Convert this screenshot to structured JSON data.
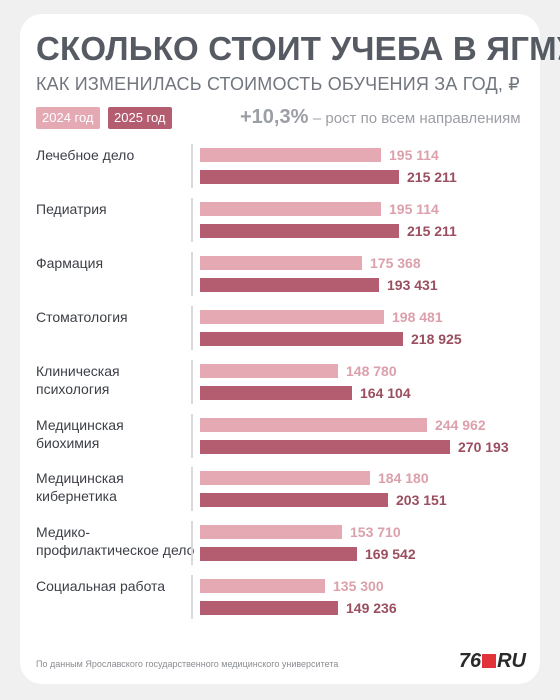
{
  "header": {
    "title": "СКОЛЬКО СТОИТ УЧЕБА В ЯГМУ",
    "subtitle": "КАК ИЗМЕНИЛАСЬ СТОИМОСТЬ ОБУЧЕНИЯ ЗА ГОД, ₽"
  },
  "legend": {
    "y2024": "2024 год",
    "y2025": "2025 год"
  },
  "growth": {
    "percent": "+10,3%",
    "text": "– рост по всем направлениям"
  },
  "colors": {
    "y2024": "#e5a9b4",
    "y2025": "#b45d70",
    "val2024": "#dba0ab",
    "val2025": "#9a4e60"
  },
  "chart_data": {
    "type": "bar",
    "title": "СКОЛЬКО СТОИТ УЧЕБА В ЯГМУ",
    "subtitle": "КАК ИЗМЕНИЛАСЬ СТОИМОСТЬ ОБУЧЕНИЯ ЗА ГОД, ₽",
    "orientation": "horizontal",
    "categories": [
      "Лечебное дело",
      "Педиатрия",
      "Фармация",
      "Стоматология",
      "Клиническая\nпсихология",
      "Медицинская\nбиохимия",
      "Медицинская\nкибернетика",
      "Медико-\nпрофилактическое дело",
      "Социальная работа"
    ],
    "series": [
      {
        "name": "2024 год",
        "values": [
          195114,
          195114,
          175368,
          198481,
          148780,
          244962,
          184180,
          153710,
          135300
        ],
        "labels": [
          "195 114",
          "195 114",
          "175 368",
          "198 481",
          "148 780",
          "244 962",
          "184 180",
          "153 710",
          "135 300"
        ]
      },
      {
        "name": "2025 год",
        "values": [
          215211,
          215211,
          193431,
          218925,
          164104,
          270193,
          203151,
          169542,
          149236
        ],
        "labels": [
          "215 211",
          "215 211",
          "193 431",
          "218 925",
          "164 104",
          "270 193",
          "203 151",
          "169 542",
          "149 236"
        ]
      }
    ],
    "xlim": [
      0,
      270193
    ],
    "legend": "top-left",
    "grid": false
  },
  "footer": {
    "source": "По данным Ярославского государственного медицинского университета"
  },
  "logo": {
    "pre": "76",
    "post": "RU"
  }
}
